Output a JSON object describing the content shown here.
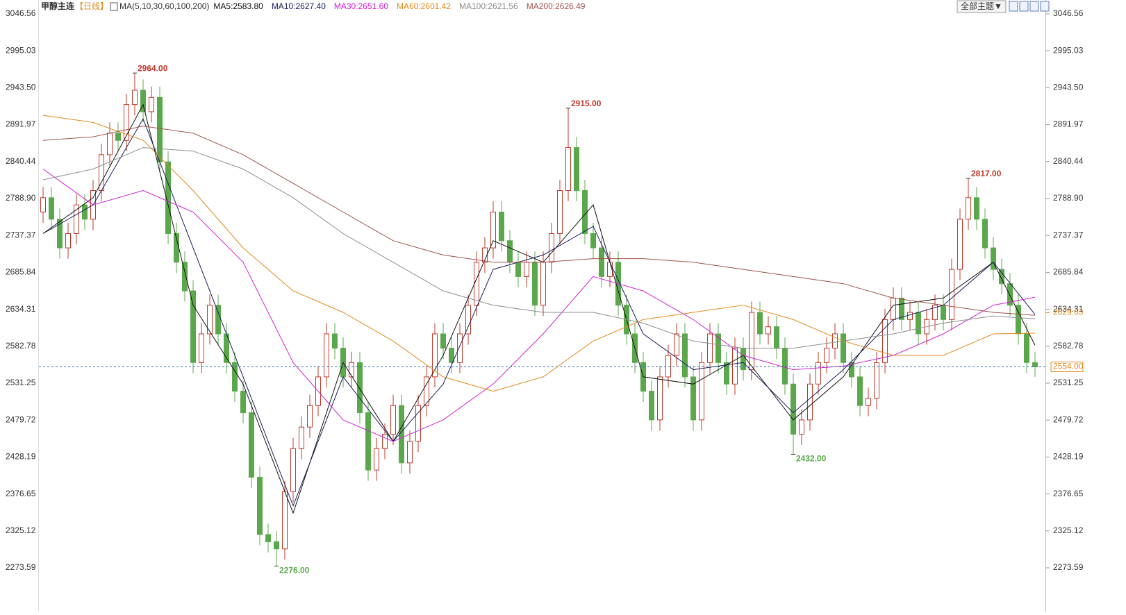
{
  "chart_data": {
    "type": "candlestick",
    "title": "甲醇主连",
    "period": "【日线】",
    "indicator": "MA(5,10,30,60,100,200)",
    "theme_button": "全部主题▼",
    "up_color": "#c0392b",
    "down_color": "#5ba84c",
    "ylim": [
      2242.6,
      3056.2
    ],
    "yticks": [
      3046.56,
      2995.03,
      {
        "value": 2943.5,
        "label": "2943.50"
      },
      2891.97,
      2840.44,
      {
        "value": 2788.9,
        "label": "2788.90"
      },
      2737.37,
      2685.84,
      2634.31,
      2582.78,
      2531.25,
      2479.72,
      2428.19,
      2376.65,
      2325.12,
      2273.59
    ],
    "candles": [
      [
        2770,
        2805,
        2755,
        2790
      ],
      [
        2790,
        2805,
        2745,
        2760
      ],
      [
        2760,
        2775,
        2705,
        2720
      ],
      [
        2720,
        2755,
        2705,
        2740
      ],
      [
        2740,
        2795,
        2725,
        2780
      ],
      [
        2780,
        2795,
        2745,
        2760
      ],
      [
        2760,
        2815,
        2745,
        2800
      ],
      [
        2800,
        2865,
        2785,
        2850
      ],
      [
        2850,
        2895,
        2835,
        2880
      ],
      [
        2880,
        2895,
        2855,
        2870
      ],
      [
        2870,
        2935,
        2855,
        2920
      ],
      [
        2920,
        2964,
        2905,
        2940
      ],
      [
        2940,
        2955,
        2895,
        2910
      ],
      [
        2910,
        2945,
        2895,
        2930
      ],
      [
        2930,
        2945,
        2825,
        2840
      ],
      [
        2840,
        2855,
        2725,
        2740
      ],
      [
        2740,
        2755,
        2685,
        2700
      ],
      [
        2700,
        2715,
        2645,
        2660
      ],
      [
        2660,
        2675,
        2545,
        2560
      ],
      [
        2560,
        2615,
        2545,
        2600
      ],
      [
        2600,
        2655,
        2585,
        2640
      ],
      [
        2640,
        2655,
        2585,
        2600
      ],
      [
        2600,
        2615,
        2545,
        2560
      ],
      [
        2560,
        2575,
        2505,
        2520
      ],
      [
        2520,
        2535,
        2475,
        2490
      ],
      [
        2490,
        2505,
        2385,
        2400
      ],
      [
        2400,
        2415,
        2305,
        2320
      ],
      [
        2320,
        2335,
        2295,
        2310
      ],
      [
        2310,
        2325,
        2276,
        2300
      ],
      [
        2300,
        2395,
        2285,
        2380
      ],
      [
        2380,
        2455,
        2365,
        2440
      ],
      [
        2440,
        2485,
        2425,
        2470
      ],
      [
        2470,
        2515,
        2455,
        2500
      ],
      [
        2500,
        2555,
        2485,
        2540
      ],
      [
        2540,
        2615,
        2525,
        2600
      ],
      [
        2600,
        2615,
        2565,
        2580
      ],
      [
        2580,
        2595,
        2525,
        2540
      ],
      [
        2540,
        2575,
        2525,
        2560
      ],
      [
        2560,
        2575,
        2475,
        2490
      ],
      [
        2490,
        2505,
        2395,
        2410
      ],
      [
        2410,
        2455,
        2395,
        2440
      ],
      [
        2440,
        2475,
        2425,
        2460
      ],
      [
        2460,
        2515,
        2445,
        2500
      ],
      [
        2500,
        2515,
        2405,
        2420
      ],
      [
        2420,
        2465,
        2405,
        2450
      ],
      [
        2450,
        2515,
        2435,
        2500
      ],
      [
        2500,
        2555,
        2485,
        2540
      ],
      [
        2540,
        2615,
        2525,
        2600
      ],
      [
        2600,
        2615,
        2565,
        2580
      ],
      [
        2580,
        2595,
        2545,
        2560
      ],
      [
        2560,
        2615,
        2545,
        2600
      ],
      [
        2600,
        2655,
        2585,
        2640
      ],
      [
        2640,
        2715,
        2625,
        2700
      ],
      [
        2700,
        2735,
        2685,
        2720
      ],
      [
        2720,
        2785,
        2705,
        2770
      ],
      [
        2770,
        2785,
        2715,
        2730
      ],
      [
        2730,
        2745,
        2685,
        2700
      ],
      [
        2700,
        2715,
        2665,
        2680
      ],
      [
        2680,
        2715,
        2665,
        2700
      ],
      [
        2700,
        2715,
        2625,
        2640
      ],
      [
        2640,
        2715,
        2625,
        2700
      ],
      [
        2700,
        2755,
        2685,
        2740
      ],
      [
        2740,
        2815,
        2725,
        2800
      ],
      [
        2800,
        2915,
        2785,
        2860
      ],
      [
        2860,
        2875,
        2785,
        2800
      ],
      [
        2800,
        2815,
        2725,
        2740
      ],
      [
        2740,
        2755,
        2705,
        2720
      ],
      [
        2720,
        2735,
        2665,
        2680
      ],
      [
        2680,
        2715,
        2665,
        2700
      ],
      [
        2700,
        2715,
        2625,
        2640
      ],
      [
        2640,
        2655,
        2585,
        2600
      ],
      [
        2600,
        2615,
        2545,
        2560
      ],
      [
        2560,
        2575,
        2505,
        2520
      ],
      [
        2520,
        2535,
        2465,
        2480
      ],
      [
        2480,
        2555,
        2465,
        2540
      ],
      [
        2540,
        2585,
        2525,
        2570
      ],
      [
        2570,
        2615,
        2555,
        2600
      ],
      [
        2600,
        2615,
        2525,
        2540
      ],
      [
        2540,
        2555,
        2465,
        2480
      ],
      [
        2480,
        2575,
        2465,
        2560
      ],
      [
        2560,
        2615,
        2545,
        2600
      ],
      [
        2600,
        2615,
        2545,
        2560
      ],
      [
        2560,
        2575,
        2515,
        2530
      ],
      [
        2530,
        2595,
        2515,
        2580
      ],
      [
        2580,
        2595,
        2535,
        2550
      ],
      [
        2550,
        2645,
        2535,
        2630
      ],
      [
        2630,
        2645,
        2585,
        2600
      ],
      [
        2600,
        2625,
        2585,
        2610
      ],
      [
        2610,
        2625,
        2565,
        2580
      ],
      [
        2580,
        2595,
        2515,
        2530
      ],
      [
        2530,
        2545,
        2432,
        2460
      ],
      [
        2460,
        2495,
        2445,
        2480
      ],
      [
        2480,
        2545,
        2465,
        2530
      ],
      [
        2530,
        2575,
        2515,
        2560
      ],
      [
        2560,
        2595,
        2545,
        2580
      ],
      [
        2580,
        2615,
        2565,
        2600
      ],
      [
        2600,
        2615,
        2545,
        2560
      ],
      [
        2560,
        2575,
        2525,
        2540
      ],
      [
        2540,
        2555,
        2485,
        2500
      ],
      [
        2500,
        2525,
        2485,
        2510
      ],
      [
        2510,
        2575,
        2495,
        2560
      ],
      [
        2560,
        2635,
        2545,
        2620
      ],
      [
        2620,
        2665,
        2605,
        2650
      ],
      [
        2650,
        2665,
        2605,
        2620
      ],
      [
        2620,
        2645,
        2605,
        2630
      ],
      [
        2630,
        2645,
        2585,
        2600
      ],
      [
        2600,
        2635,
        2585,
        2620
      ],
      [
        2620,
        2655,
        2605,
        2640
      ],
      [
        2640,
        2655,
        2605,
        2620
      ],
      [
        2620,
        2705,
        2605,
        2690
      ],
      [
        2690,
        2775,
        2675,
        2760
      ],
      [
        2760,
        2817,
        2745,
        2790
      ],
      [
        2790,
        2805,
        2745,
        2760
      ],
      [
        2760,
        2775,
        2705,
        2720
      ],
      [
        2720,
        2735,
        2675,
        2690
      ],
      [
        2690,
        2705,
        2655,
        2670
      ],
      [
        2670,
        2685,
        2625,
        2640
      ],
      [
        2640,
        2655,
        2585,
        2600
      ],
      [
        2600,
        2615,
        2545,
        2560
      ],
      [
        2560,
        2575,
        2540,
        2554
      ]
    ],
    "x": [
      0,
      6,
      12,
      18,
      24,
      30,
      36,
      42,
      48,
      54,
      60,
      66,
      72,
      78,
      84,
      90,
      96,
      102,
      108,
      114,
      119
    ],
    "series": [
      {
        "name": "MA5:2583.80",
        "color": "#111111",
        "values": [
          2740,
          2790,
          2920,
          2640,
          2530,
          2350,
          2560,
          2450,
          2570,
          2730,
          2700,
          2780,
          2540,
          2530,
          2570,
          2480,
          2540,
          2640,
          2650,
          2700,
          2584
        ]
      },
      {
        "name": "MA10:2627.40",
        "color": "#1a1a5e",
        "values": [
          2740,
          2780,
          2900,
          2720,
          2540,
          2360,
          2540,
          2450,
          2530,
          2690,
          2710,
          2750,
          2600,
          2550,
          2560,
          2490,
          2550,
          2620,
          2640,
          2700,
          2627
        ]
      },
      {
        "name": "MA30:2651.60",
        "color": "#d020d0",
        "values": [
          2830,
          2780,
          2800,
          2770,
          2700,
          2560,
          2480,
          2450,
          2480,
          2530,
          2600,
          2680,
          2660,
          2620,
          2570,
          2550,
          2555,
          2570,
          2600,
          2640,
          2651
        ]
      },
      {
        "name": "MA60:2601.42",
        "color": "#e08a1e",
        "values": [
          2905,
          2895,
          2870,
          2800,
          2720,
          2660,
          2630,
          2590,
          2540,
          2520,
          2540,
          2590,
          2620,
          2630,
          2640,
          2620,
          2590,
          2570,
          2570,
          2600,
          2601
        ]
      },
      {
        "name": "MA100:2621.56",
        "color": "#8c8c8c",
        "values": [
          2815,
          2830,
          2860,
          2855,
          2830,
          2790,
          2740,
          2700,
          2660,
          2640,
          2630,
          2630,
          2615,
          2590,
          2580,
          2580,
          2590,
          2600,
          2615,
          2625,
          2621
        ]
      },
      {
        "name": "MA200:2626.49",
        "color": "#a0524a",
        "values": [
          2870,
          2875,
          2890,
          2880,
          2850,
          2810,
          2770,
          2730,
          2710,
          2700,
          2700,
          2705,
          2705,
          2700,
          2690,
          2680,
          2670,
          2650,
          2640,
          2630,
          2626
        ]
      }
    ],
    "extremes": [
      {
        "value": 2964,
        "label": "2964.00"
      },
      {
        "value": 2915,
        "label": "2915.00"
      },
      {
        "value": 2817,
        "label": "2817.00"
      },
      {
        "value": 2432,
        "label": "2432.00"
      },
      {
        "value": 2276,
        "label": "2276.00"
      }
    ],
    "price_labels": [
      {
        "value": 2629.63,
        "color": "#e08a1e"
      },
      {
        "value": 2554,
        "label": "2554.00",
        "color": "#e08a1e"
      }
    ]
  }
}
